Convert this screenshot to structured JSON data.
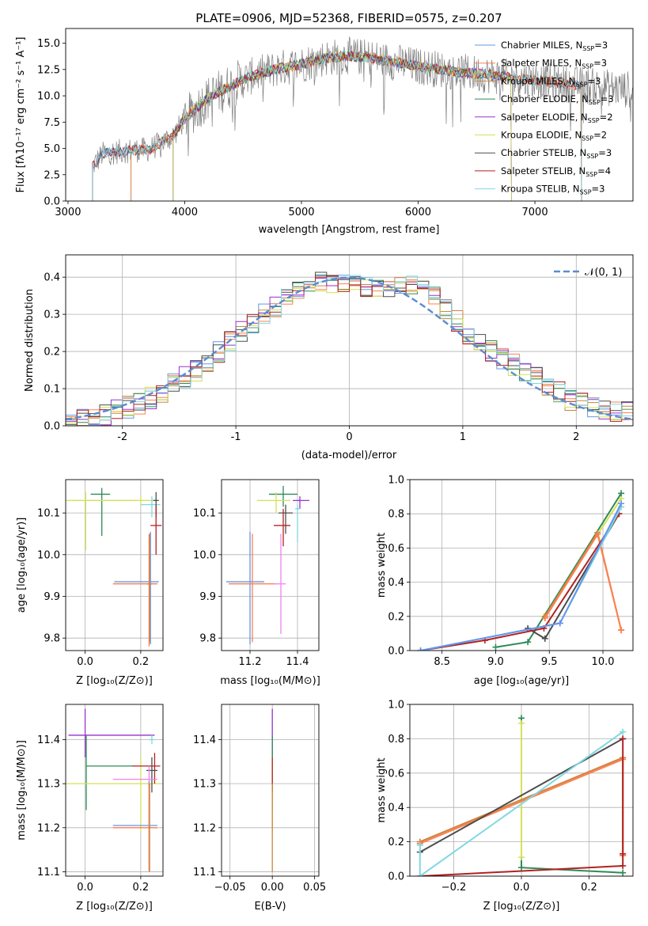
{
  "title": "PLATE=0906, MJD=52368, FIBERID=0575, z=0.207",
  "colors": {
    "chabrier_miles": "#6495ed",
    "salpeter_miles": "#ff7f50",
    "kroupa_miles": "#cd853f",
    "chabrier_elodie": "#2e8b57",
    "salpeter_elodie": "#9932cc",
    "kroupa_elodie": "#d4e157",
    "chabrier_stelib": "#4d4d4d",
    "salpeter_stelib": "#b22222",
    "kroupa_stelib": "#80d8e0",
    "pink": "#ee82ee",
    "gaussian": "#5b8bd0"
  },
  "chart_data": [
    {
      "id": "spectrum",
      "type": "line",
      "xlabel": "wavelength [Angstrom, rest frame]",
      "ylabel": "Flux [fλ10⁻¹⁷ erg cm⁻² s⁻¹ A⁻¹]",
      "xlim": [
        2980,
        7840
      ],
      "ylim": [
        0,
        16.4
      ],
      "xticks": [
        3000,
        4000,
        5000,
        6000,
        7000
      ],
      "yticks": [
        0.0,
        2.5,
        5.0,
        7.5,
        10.0,
        12.5,
        15.0
      ],
      "legend_position": "right",
      "legend": [
        {
          "label": "Chabrier MILES, N",
          "sub": "SSP",
          "suffix": "=3",
          "color": "#6495ed"
        },
        {
          "label": "Salpeter MILES, N",
          "sub": "SSP",
          "suffix": "=3",
          "color": "#ff7f50"
        },
        {
          "label": "Kroupa MILES, N",
          "sub": "SSP",
          "suffix": "=3",
          "color": "#cd853f"
        },
        {
          "label": "Chabrier ELODIE, N",
          "sub": "SSP",
          "suffix": "=3",
          "color": "#2e8b57"
        },
        {
          "label": "Salpeter ELODIE, N",
          "sub": "SSP",
          "suffix": "=2",
          "color": "#9932cc"
        },
        {
          "label": "Kroupa ELODIE, N",
          "sub": "SSP",
          "suffix": "=2",
          "color": "#d4e157"
        },
        {
          "label": "Chabrier STELIB, N",
          "sub": "SSP",
          "suffix": "=3",
          "color": "#4d4d4d"
        },
        {
          "label": "Salpeter STELIB, N",
          "sub": "SSP",
          "suffix": "=4",
          "color": "#b22222"
        },
        {
          "label": "Kroupa STELIB, N",
          "sub": "SSP",
          "suffix": "=3",
          "color": "#80d8e0"
        }
      ],
      "continuum": [
        [
          3200,
          3.2
        ],
        [
          3300,
          4.5
        ],
        [
          3500,
          4.8
        ],
        [
          3700,
          4.9
        ],
        [
          3900,
          6.2
        ],
        [
          4000,
          7.8
        ],
        [
          4200,
          9.8
        ],
        [
          4400,
          11.0
        ],
        [
          4600,
          12.0
        ],
        [
          4800,
          12.6
        ],
        [
          5000,
          13.0
        ],
        [
          5200,
          13.6
        ],
        [
          5400,
          13.8
        ],
        [
          5600,
          13.6
        ],
        [
          5800,
          13.2
        ],
        [
          6000,
          12.8
        ],
        [
          6200,
          12.5
        ],
        [
          6400,
          12.2
        ],
        [
          6600,
          12.0
        ],
        [
          6800,
          11.7
        ],
        [
          7000,
          11.5
        ],
        [
          7200,
          11.2
        ],
        [
          7400,
          11.0
        ],
        [
          7800,
          10.6
        ]
      ],
      "model_ranges": [
        {
          "color": "#6495ed",
          "start": 3210,
          "end": 7400
        },
        {
          "color": "#ff7f50",
          "start": 3540,
          "end": 7400
        },
        {
          "color": "#cd853f",
          "start": 3540,
          "end": 7400
        },
        {
          "color": "#2e8b57",
          "start": 3900,
          "end": 6800
        },
        {
          "color": "#9932cc",
          "start": 3900,
          "end": 6800
        },
        {
          "color": "#d4e157",
          "start": 3900,
          "end": 6800
        },
        {
          "color": "#4d4d4d",
          "start": 3210,
          "end": 7400
        },
        {
          "color": "#b22222",
          "start": 3210,
          "end": 7400
        },
        {
          "color": "#80d8e0",
          "start": 3210,
          "end": 7400
        }
      ]
    },
    {
      "id": "residual_hist",
      "type": "line",
      "xlabel": "(data-model)/error",
      "ylabel": "Normed distribution",
      "xlim": [
        -2.5,
        2.5
      ],
      "ylim": [
        0,
        0.46
      ],
      "xticks": [
        -2,
        -1,
        0,
        1,
        2
      ],
      "yticks": [
        0.0,
        0.1,
        0.2,
        0.3,
        0.4
      ],
      "grid": true,
      "legend_position": "top-right",
      "legend": [
        {
          "label": "𝒩(0, 1)",
          "color": "#5b8bd0",
          "style": "dashed"
        }
      ],
      "bin_width": 0.1,
      "gaussian": {
        "mu": 0,
        "sigma": 1
      },
      "histogram_envelope": [
        [
          -2.45,
          0.01
        ],
        [
          -2.25,
          0.02
        ],
        [
          -2.05,
          0.04
        ],
        [
          -1.85,
          0.06
        ],
        [
          -1.65,
          0.09
        ],
        [
          -1.45,
          0.13
        ],
        [
          -1.25,
          0.17
        ],
        [
          -1.05,
          0.23
        ],
        [
          -0.85,
          0.28
        ],
        [
          -0.65,
          0.32
        ],
        [
          -0.45,
          0.36
        ],
        [
          -0.25,
          0.39
        ],
        [
          -0.05,
          0.38
        ],
        [
          0.15,
          0.37
        ],
        [
          0.35,
          0.37
        ],
        [
          0.55,
          0.38
        ],
        [
          0.75,
          0.35
        ],
        [
          0.95,
          0.28
        ],
        [
          1.15,
          0.22
        ],
        [
          1.35,
          0.18
        ],
        [
          1.55,
          0.15
        ],
        [
          1.75,
          0.11
        ],
        [
          1.95,
          0.07
        ],
        [
          2.15,
          0.05
        ],
        [
          2.35,
          0.04
        ],
        [
          2.5,
          0.04
        ]
      ]
    },
    {
      "id": "age_vs_Z",
      "type": "scatter",
      "xlabel": "Z [log₁₀(Z/Z⊙)]",
      "ylabel": "age  [log₁₀(age/yr)]",
      "xlim": [
        -0.07,
        0.28
      ],
      "ylim": [
        9.77,
        10.18
      ],
      "xticks": [
        0.0,
        0.2
      ],
      "yticks": [
        9.8,
        9.9,
        10.0,
        10.1
      ],
      "grid": true,
      "points": [
        {
          "x": 0.06,
          "y": 10.145,
          "xerr": [
            0.04,
            0.03
          ],
          "yerr": [
            0.1,
            0.015
          ],
          "color": "#2e8b57"
        },
        {
          "x": 0.2,
          "y": 10.13,
          "xerr": [
            0.27,
            0.03
          ],
          "yerr": [
            0.01,
            0.01
          ],
          "color": "#d4e157"
        },
        {
          "x": 0.002,
          "y": 10.13,
          "xerr": [
            0.06,
            0.25
          ],
          "yerr": [
            0.12,
            0.02
          ],
          "color": "#d4e157"
        },
        {
          "x": 0.24,
          "y": 10.12,
          "xerr": [
            0.04,
            0.03
          ],
          "yerr": [
            0.03,
            0.02
          ],
          "color": "#80d8e0"
        },
        {
          "x": 0.255,
          "y": 10.13,
          "xerr": [
            0.01,
            0.01
          ],
          "yerr": [
            0.04,
            0.02
          ],
          "color": "#4d4d4d"
        },
        {
          "x": 0.255,
          "y": 10.07,
          "xerr": [
            0.02,
            0.02
          ],
          "yerr": [
            0.07,
            0.05
          ],
          "color": "#b22222"
        },
        {
          "x": 0.235,
          "y": 9.935,
          "xerr": [
            0.13,
            0.03
          ],
          "yerr": [
            0.15,
            0.12
          ],
          "color": "#6495ed"
        },
        {
          "x": 0.23,
          "y": 9.93,
          "xerr": [
            0.13,
            0.03
          ],
          "yerr": [
            0.15,
            0.12
          ],
          "color": "#ff7f50"
        },
        {
          "x": 0.232,
          "y": 9.93,
          "xerr": [
            0.01,
            0.01
          ],
          "yerr": [
            0.14,
            0.12
          ],
          "color": "#cd853f"
        }
      ]
    },
    {
      "id": "age_vs_mass",
      "type": "scatter",
      "xlabel": "mass [log₁₀(M/M⊙)]",
      "ylabel": "",
      "xlim": [
        11.08,
        11.49
      ],
      "ylim": [
        9.77,
        10.18
      ],
      "xticks": [
        11.2,
        11.4
      ],
      "yticks": [
        9.8,
        9.9,
        10.0,
        10.1
      ],
      "grid": true,
      "points": [
        {
          "x": 11.34,
          "y": 10.145,
          "xerr": [
            0.06,
            0.06
          ],
          "yerr": [
            0.03,
            0.02
          ],
          "color": "#2e8b57"
        },
        {
          "x": 11.41,
          "y": 10.13,
          "xerr": [
            0.03,
            0.04
          ],
          "yerr": [
            0.02,
            0.01
          ],
          "color": "#9932cc"
        },
        {
          "x": 11.31,
          "y": 10.13,
          "xerr": [
            0.08,
            0.06
          ],
          "yerr": [
            0.03,
            0.02
          ],
          "color": "#d4e157"
        },
        {
          "x": 11.35,
          "y": 10.1,
          "xerr": [
            0.03,
            0.03
          ],
          "yerr": [
            0.05,
            0.02
          ],
          "color": "#4d4d4d"
        },
        {
          "x": 11.34,
          "y": 10.07,
          "xerr": [
            0.04,
            0.03
          ],
          "yerr": [
            0.05,
            0.04
          ],
          "color": "#b22222"
        },
        {
          "x": 11.4,
          "y": 10.11,
          "xerr": [
            0.01,
            0.01
          ],
          "yerr": [
            0.08,
            0.01
          ],
          "color": "#80d8e0"
        },
        {
          "x": 11.2,
          "y": 9.935,
          "xerr": [
            0.1,
            0.06
          ],
          "yerr": [
            0.15,
            0.12
          ],
          "color": "#6495ed"
        },
        {
          "x": 11.21,
          "y": 9.93,
          "xerr": [
            0.1,
            0.1
          ],
          "yerr": [
            0.14,
            0.12
          ],
          "color": "#ff7f50"
        },
        {
          "x": 11.33,
          "y": 9.93,
          "xerr": [
            0.03,
            0.02
          ],
          "yerr": [
            0.12,
            0.12
          ],
          "color": "#ee82ee"
        }
      ]
    },
    {
      "id": "weight_vs_age",
      "type": "line",
      "xlabel": "age  [log₁₀(age/yr)]",
      "ylabel": "mass weight",
      "xlim": [
        8.2,
        10.28
      ],
      "ylim": [
        0,
        1.0
      ],
      "xticks": [
        8.5,
        9.0,
        9.5,
        10.0
      ],
      "yticks": [
        0.0,
        0.2,
        0.4,
        0.6,
        0.8,
        1.0
      ],
      "grid": true,
      "series": [
        {
          "color": "#d4e157",
          "x": [
            9.45,
            10.17
          ],
          "y": [
            0.2,
            0.89
          ]
        },
        {
          "color": "#2e8b57",
          "x": [
            9.0,
            9.3,
            10.17
          ],
          "y": [
            0.02,
            0.05,
            0.92
          ]
        },
        {
          "color": "#cd853f",
          "x": [
            9.46,
            9.95,
            10.17
          ],
          "y": [
            0.2,
            0.69,
            0.12
          ]
        },
        {
          "color": "#ff7f50",
          "x": [
            9.46,
            9.95,
            10.17
          ],
          "y": [
            0.19,
            0.68,
            0.12
          ]
        },
        {
          "color": "#4d4d4d",
          "x": [
            9.3,
            9.46,
            10.15
          ],
          "y": [
            0.13,
            0.07,
            0.8
          ]
        },
        {
          "color": "#b22222",
          "x": [
            8.3,
            8.9,
            9.45,
            10.15
          ],
          "y": [
            0.0,
            0.06,
            0.13,
            0.8
          ]
        },
        {
          "color": "#80d8e0",
          "x": [
            8.3,
            9.6,
            10.17
          ],
          "y": [
            0.0,
            0.16,
            0.84
          ]
        },
        {
          "color": "#6495ed",
          "x": [
            8.3,
            9.6,
            10.17
          ],
          "y": [
            0.0,
            0.16,
            0.86
          ]
        }
      ]
    },
    {
      "id": "mass_vs_Z",
      "type": "scatter",
      "xlabel": "Z [log₁₀(Z/Z⊙)]",
      "ylabel": "mass [log₁₀(M/M⊙)]",
      "xlim": [
        -0.07,
        0.28
      ],
      "ylim": [
        11.09,
        11.48
      ],
      "xticks": [
        0.0,
        0.2
      ],
      "yticks": [
        11.1,
        11.2,
        11.3,
        11.4
      ],
      "grid": true,
      "points": [
        {
          "x": 0.0,
          "y": 11.41,
          "xerr": [
            0.06,
            0.25
          ],
          "yerr": [
            0.05,
            0.06
          ],
          "color": "#9932cc"
        },
        {
          "x": 0.004,
          "y": 11.34,
          "xerr": [
            0.0,
            0.17
          ],
          "yerr": [
            0.1,
            0.07
          ],
          "color": "#2e8b57"
        },
        {
          "x": 0.2,
          "y": 11.3,
          "xerr": [
            0.27,
            0.07
          ],
          "yerr": [
            0.11,
            0.06
          ],
          "color": "#d4e157"
        },
        {
          "x": 0.25,
          "y": 11.34,
          "xerr": [
            0.08,
            0.02
          ],
          "yerr": [
            0.04,
            0.03
          ],
          "color": "#b22222"
        },
        {
          "x": 0.24,
          "y": 11.33,
          "xerr": [
            0.02,
            0.02
          ],
          "yerr": [
            0.05,
            0.03
          ],
          "color": "#4d4d4d"
        },
        {
          "x": 0.24,
          "y": 11.4,
          "xerr": [
            0.01,
            0.01
          ],
          "yerr": [
            0.01,
            0.01
          ],
          "color": "#80d8e0"
        },
        {
          "x": 0.23,
          "y": 11.31,
          "xerr": [
            0.13,
            0.03
          ],
          "yerr": [
            0.02,
            0.03
          ],
          "color": "#ee82ee"
        },
        {
          "x": 0.23,
          "y": 11.205,
          "xerr": [
            0.13,
            0.03
          ],
          "yerr": [
            0.1,
            0.1
          ],
          "color": "#6495ed"
        },
        {
          "x": 0.23,
          "y": 11.2,
          "xerr": [
            0.13,
            0.03
          ],
          "yerr": [
            0.1,
            0.1
          ],
          "color": "#ff7f50"
        },
        {
          "x": 0.232,
          "y": 11.2,
          "xerr": [
            0.005,
            0.005
          ],
          "yerr": [
            0.1,
            0.1
          ],
          "color": "#cd853f"
        }
      ]
    },
    {
      "id": "mass_vs_ebv",
      "type": "scatter",
      "xlabel": "E(B-V)",
      "ylabel": "",
      "xlim": [
        -0.06,
        0.055
      ],
      "ylim": [
        11.09,
        11.48
      ],
      "xticks": [
        -0.05,
        0.0,
        0.05
      ],
      "xtick_labels": [
        "−0.05",
        "0.00",
        "0.05"
      ],
      "yticks": [
        11.1,
        11.2,
        11.3,
        11.4
      ],
      "grid": true,
      "points": [
        {
          "x": 0.0,
          "y": 11.41,
          "xerr": [
            0,
            0
          ],
          "yerr": [
            0.05,
            0.06
          ],
          "color": "#9932cc"
        },
        {
          "x": 0.0,
          "y": 11.34,
          "xerr": [
            0,
            0
          ],
          "yerr": [
            0.1,
            0.07
          ],
          "color": "#2e8b57"
        },
        {
          "x": 0.0,
          "y": 11.3,
          "xerr": [
            0,
            0
          ],
          "yerr": [
            0.11,
            0.06
          ],
          "color": "#d4e157"
        },
        {
          "x": 0.0,
          "y": 11.33,
          "xerr": [
            0,
            0
          ],
          "yerr": [
            0.05,
            0.03
          ],
          "color": "#b22222"
        },
        {
          "x": 0.0,
          "y": 11.2,
          "xerr": [
            0,
            0
          ],
          "yerr": [
            0.1,
            0.1
          ],
          "color": "#cd853f"
        }
      ]
    },
    {
      "id": "weight_vs_Z",
      "type": "line",
      "xlabel": "Z [log₁₀(Z/Z⊙)]",
      "ylabel": "mass weight",
      "xlim": [
        -0.33,
        0.33
      ],
      "ylim": [
        0,
        1.0
      ],
      "xticks": [
        -0.2,
        0.0,
        0.2
      ],
      "xtick_labels": [
        "−0.2",
        "0.0",
        "0.2"
      ],
      "yticks": [
        0.0,
        0.2,
        0.4,
        0.6,
        0.8,
        1.0
      ],
      "grid": true,
      "series": [
        {
          "color": "#2e8b57",
          "x": [
            0.0,
            0.0,
            0.3
          ],
          "y": [
            0.92,
            0.05,
            0.02
          ]
        },
        {
          "color": "#d4e157",
          "x": [
            0.0,
            0.0
          ],
          "y": [
            0.89,
            0.11
          ]
        },
        {
          "color": "#cd853f",
          "x": [
            -0.3,
            0.3,
            0.3
          ],
          "y": [
            0.2,
            0.69,
            0.12
          ]
        },
        {
          "color": "#ff7f50",
          "x": [
            -0.3,
            0.3,
            0.3
          ],
          "y": [
            0.19,
            0.68,
            0.12
          ]
        },
        {
          "color": "#4d4d4d",
          "x": [
            -0.3,
            0.3
          ],
          "y": [
            0.14,
            0.8
          ]
        },
        {
          "color": "#b22222",
          "x": [
            -0.3,
            0.3,
            0.3,
            0.3
          ],
          "y": [
            0.0,
            0.06,
            0.13,
            0.8
          ]
        },
        {
          "color": "#80d8e0",
          "x": [
            -0.3,
            -0.3,
            0.3
          ],
          "y": [
            0.18,
            0.0,
            0.84
          ]
        }
      ]
    }
  ]
}
